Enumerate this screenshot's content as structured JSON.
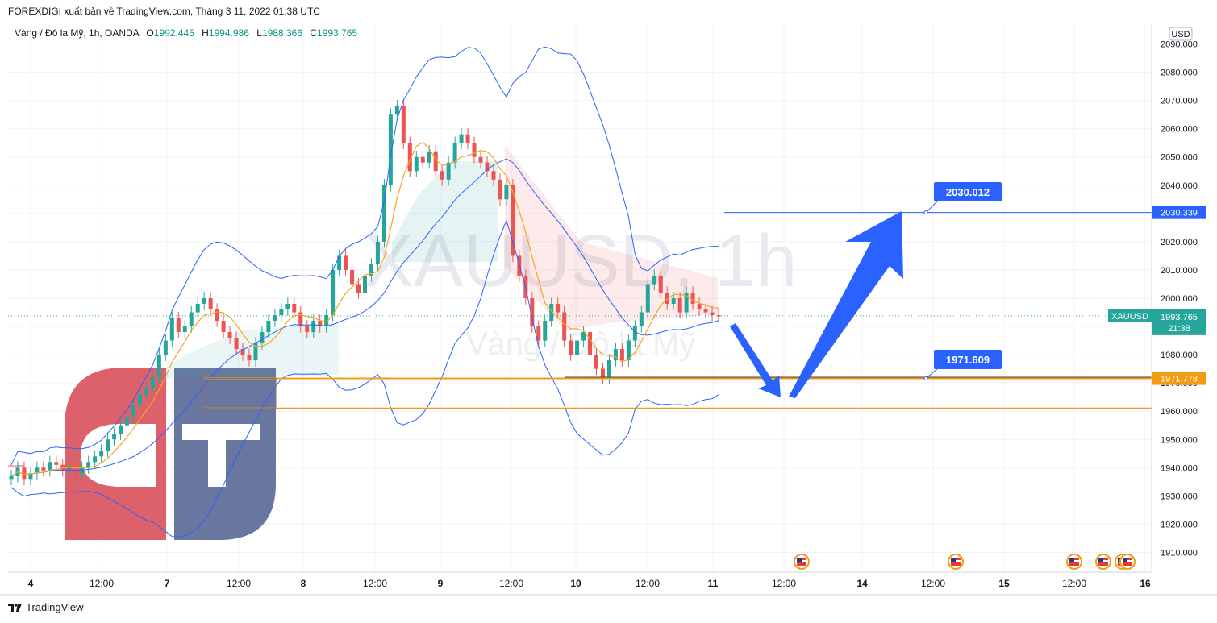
{
  "header": {
    "published": "FOREXDIGI xuất bản về TradingView.com, Tháng 3 11, 2022 01:38 UTC"
  },
  "symbol": {
    "name": "Vàng / Đô la Mỹ, 1h, OANDA",
    "o_label": "O",
    "o": "1992.445",
    "h_label": "H",
    "h": "1994.986",
    "l_label": "L",
    "l": "1988.366",
    "c_label": "C",
    "c": "1993.765"
  },
  "watermark": {
    "line1": "XAUUSD, 1h",
    "line2": "Vàng / Đô la Mỹ"
  },
  "currency": "USD",
  "footer": {
    "brand": "TradingView"
  },
  "colors": {
    "up": "#26a69a",
    "down": "#ef5350",
    "band": "#2962ff",
    "ema": "#f5a623",
    "level": "#f39c12",
    "blue_arrow": "#2962ff",
    "logo_red": "#d64550",
    "logo_navy": "#4f5f8f"
  },
  "chart_data": {
    "type": "candlestick",
    "y_axis": {
      "ylim": [
        1903,
        2097
      ],
      "ticks": [
        "2090.000",
        "2080.000",
        "2070.000",
        "2060.000",
        "2050.000",
        "2040.000",
        "2030.000",
        "2020.000",
        "2010.000",
        "2000.000",
        "1990.000",
        "1980.000",
        "1970.000",
        "1960.000",
        "1950.000",
        "1940.000",
        "1930.000",
        "1920.000",
        "1910.000"
      ]
    },
    "x_axis": {
      "ticks": [
        "4",
        "12:00",
        "7",
        "12:00",
        "8",
        "12:00",
        "9",
        "12:00",
        "10",
        "12:00",
        "11",
        "12:00",
        "14",
        "12:00",
        "15",
        "12:00",
        "16"
      ]
    },
    "closes": [
      1937,
      1940,
      1936,
      1938,
      1940,
      1939,
      1942,
      1941,
      1939,
      1940,
      1938,
      1940,
      1942,
      1944,
      1946,
      1950,
      1952,
      1955,
      1958,
      1962,
      1966,
      1968,
      1972,
      1980,
      1985,
      1993,
      1988,
      1990,
      1995,
      1998,
      2000,
      1996,
      1992,
      1988,
      1986,
      1982,
      1980,
      1978,
      1984,
      1988,
      1992,
      1994,
      1996,
      1998,
      1995,
      1990,
      1988,
      1992,
      1990,
      1994,
      2010,
      2015,
      2010,
      2005,
      2002,
      2008,
      2012,
      2020,
      2040,
      2065,
      2068,
      2055,
      2045,
      2050,
      2048,
      2052,
      2045,
      2042,
      2048,
      2055,
      2058,
      2055,
      2050,
      2048,
      2045,
      2042,
      2035,
      2040,
      2015,
      2008,
      2000,
      1990,
      1985,
      1992,
      1998,
      1995,
      1985,
      1980,
      1985,
      1988,
      1980,
      1975,
      1972,
      1978,
      1982,
      1978,
      1985,
      1990,
      1995,
      2005,
      2008,
      2002,
      1998,
      2000,
      1995,
      2002,
      1998,
      1996,
      1995,
      1994,
      1993.765
    ],
    "price_labels": {
      "last": "1993.765",
      "countdown": "21:38",
      "symbol": "XAUUSD",
      "upper_level": "2030.339",
      "lower_level": "1971.778"
    },
    "callouts": [
      "2030.012",
      "1971.609"
    ],
    "levels": [
      1971.6,
      1961
    ],
    "target_line": 2030.339
  }
}
